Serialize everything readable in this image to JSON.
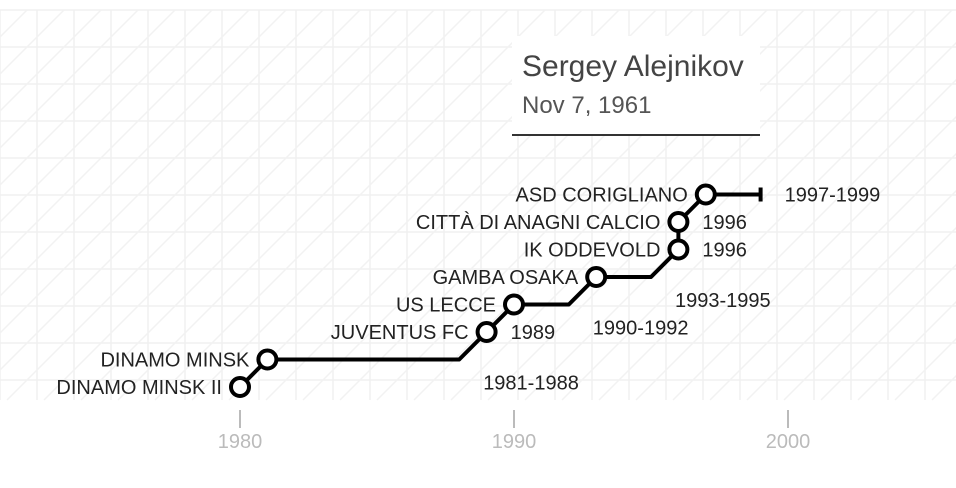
{
  "header": {
    "name": "Sergey Alejnikov",
    "birth_date": "Nov 7, 1961"
  },
  "chart_data": {
    "type": "line",
    "title": "Sergey Alejnikov",
    "subtitle": "Nov 7, 1961",
    "x_ticks": [
      "1980",
      "1990",
      "2000"
    ],
    "xlim": [
      1980,
      2000
    ],
    "grid": true,
    "line_color": "#000000",
    "axis_color": "#bbbbbb",
    "clubs": [
      {
        "club": "DINAMO MINSK II",
        "period": "",
        "start": 1980,
        "end": 1980
      },
      {
        "club": "DINAMO MINSK",
        "period": "1981-1988",
        "start": 1981,
        "end": 1988
      },
      {
        "club": "JUVENTUS FC",
        "period": "1989",
        "start": 1989,
        "end": 1989
      },
      {
        "club": "US LECCE",
        "period": "1990-1992",
        "start": 1990,
        "end": 1992
      },
      {
        "club": "GAMBA OSAKA",
        "period": "1993-1995",
        "start": 1993,
        "end": 1995
      },
      {
        "club": "IK ODDEVOLD",
        "period": "1996",
        "start": 1996,
        "end": 1996
      },
      {
        "club": "CITTÀ DI ANAGNI CALCIO",
        "period": "1996",
        "start": 1996,
        "end": 1996
      },
      {
        "club": "ASD CORIGLIANO",
        "period": "1997-1999",
        "start": 1997,
        "end": 1999
      }
    ]
  }
}
